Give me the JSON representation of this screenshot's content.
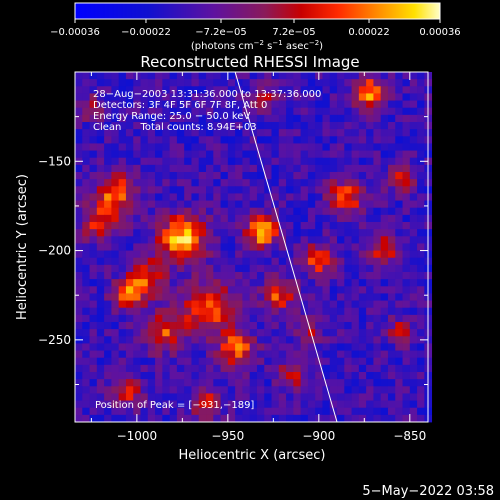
{
  "chart_data": {
    "type": "heatmap",
    "title": "Reconstructed RHESSI Image",
    "xlabel": "Heliocentric X (arcsec)",
    "ylabel": "Heliocentric Y (arcsec)",
    "xlim": [
      -1034,
      -840
    ],
    "ylim": [
      -296,
      -100
    ],
    "xticks": [
      {
        "value": -1000,
        "label": "−1000"
      },
      {
        "value": -950,
        "label": "−950"
      },
      {
        "value": -900,
        "label": "−900"
      },
      {
        "value": -850,
        "label": "−850"
      }
    ],
    "yticks": [
      {
        "value": -150,
        "label": "−150"
      },
      {
        "value": -200,
        "label": "−200"
      },
      {
        "value": -250,
        "label": "−250"
      }
    ],
    "colorbar": {
      "range": [
        -0.00036,
        0.00036
      ],
      "ticks": [
        {
          "value": -0.00036,
          "label": "−0.00036"
        },
        {
          "value": -0.00022,
          "label": "−0.00022"
        },
        {
          "value": -7.2e-05,
          "label": "−7.2e−05"
        },
        {
          "value": 7.2e-05,
          "label": "7.2e−05"
        },
        {
          "value": 0.00022,
          "label": "0.00022"
        },
        {
          "value": 0.00036,
          "label": "0.00036"
        }
      ],
      "units_prefix": "(photons cm",
      "units_exp1": "−2",
      "units_mid": " s",
      "units_exp2": "−1",
      "units_mid2": " asec",
      "units_exp3": "−2",
      "units_suffix": ")"
    },
    "annotations": {
      "time": "28−Aug−2003 13:31:36.000 to 13:37:36.000",
      "detectors": "Detectors: 3F 4F 5F 6F 7F 8F, Att 0",
      "energy": "Energy Range: 25.0 − 50.0 keV",
      "clean": "Clean      Total counts: 8.94E+03",
      "peak": "Position of Peak = [−931,−189]"
    },
    "peak": {
      "x": -931,
      "y": -189
    },
    "limb_line": [
      {
        "x": -946,
        "y": -100
      },
      {
        "x": -890,
        "y": -296
      }
    ],
    "hotspots": [
      {
        "x": -975,
        "y": -193,
        "sigma": 9,
        "amp": 1.0
      },
      {
        "x": -931,
        "y": -189,
        "sigma": 6,
        "amp": 1.05
      },
      {
        "x": -1012,
        "y": -168,
        "sigma": 8,
        "amp": 0.75
      },
      {
        "x": -1020,
        "y": -185,
        "sigma": 7,
        "amp": 0.6
      },
      {
        "x": -995,
        "y": -215,
        "sigma": 7,
        "amp": 0.7
      },
      {
        "x": -1005,
        "y": -225,
        "sigma": 6,
        "amp": 0.75
      },
      {
        "x": -960,
        "y": -232,
        "sigma": 10,
        "amp": 0.8
      },
      {
        "x": -985,
        "y": -245,
        "sigma": 8,
        "amp": 0.65
      },
      {
        "x": -945,
        "y": -255,
        "sigma": 7,
        "amp": 0.75
      },
      {
        "x": -922,
        "y": -225,
        "sigma": 6,
        "amp": 0.7
      },
      {
        "x": -915,
        "y": -270,
        "sigma": 5,
        "amp": 0.55
      },
      {
        "x": -962,
        "y": -285,
        "sigma": 6,
        "amp": 0.55
      },
      {
        "x": -1005,
        "y": -280,
        "sigma": 6,
        "amp": 0.5
      },
      {
        "x": -900,
        "y": -205,
        "sigma": 6,
        "amp": 0.7
      },
      {
        "x": -885,
        "y": -170,
        "sigma": 7,
        "amp": 0.7
      },
      {
        "x": -865,
        "y": -200,
        "sigma": 6,
        "amp": 0.6
      },
      {
        "x": -855,
        "y": -245,
        "sigma": 5,
        "amp": 0.5
      },
      {
        "x": -872,
        "y": -112,
        "sigma": 6,
        "amp": 0.9
      },
      {
        "x": -855,
        "y": -160,
        "sigma": 5,
        "amp": 0.6
      },
      {
        "x": -930,
        "y": -115,
        "sigma": 5,
        "amp": 0.5
      },
      {
        "x": -1025,
        "y": -120,
        "sigma": 5,
        "amp": 0.45
      },
      {
        "x": -905,
        "y": -245,
        "sigma": 5,
        "amp": 0.45
      }
    ]
  },
  "footer": {
    "date": "5−May−2022 03:58"
  }
}
